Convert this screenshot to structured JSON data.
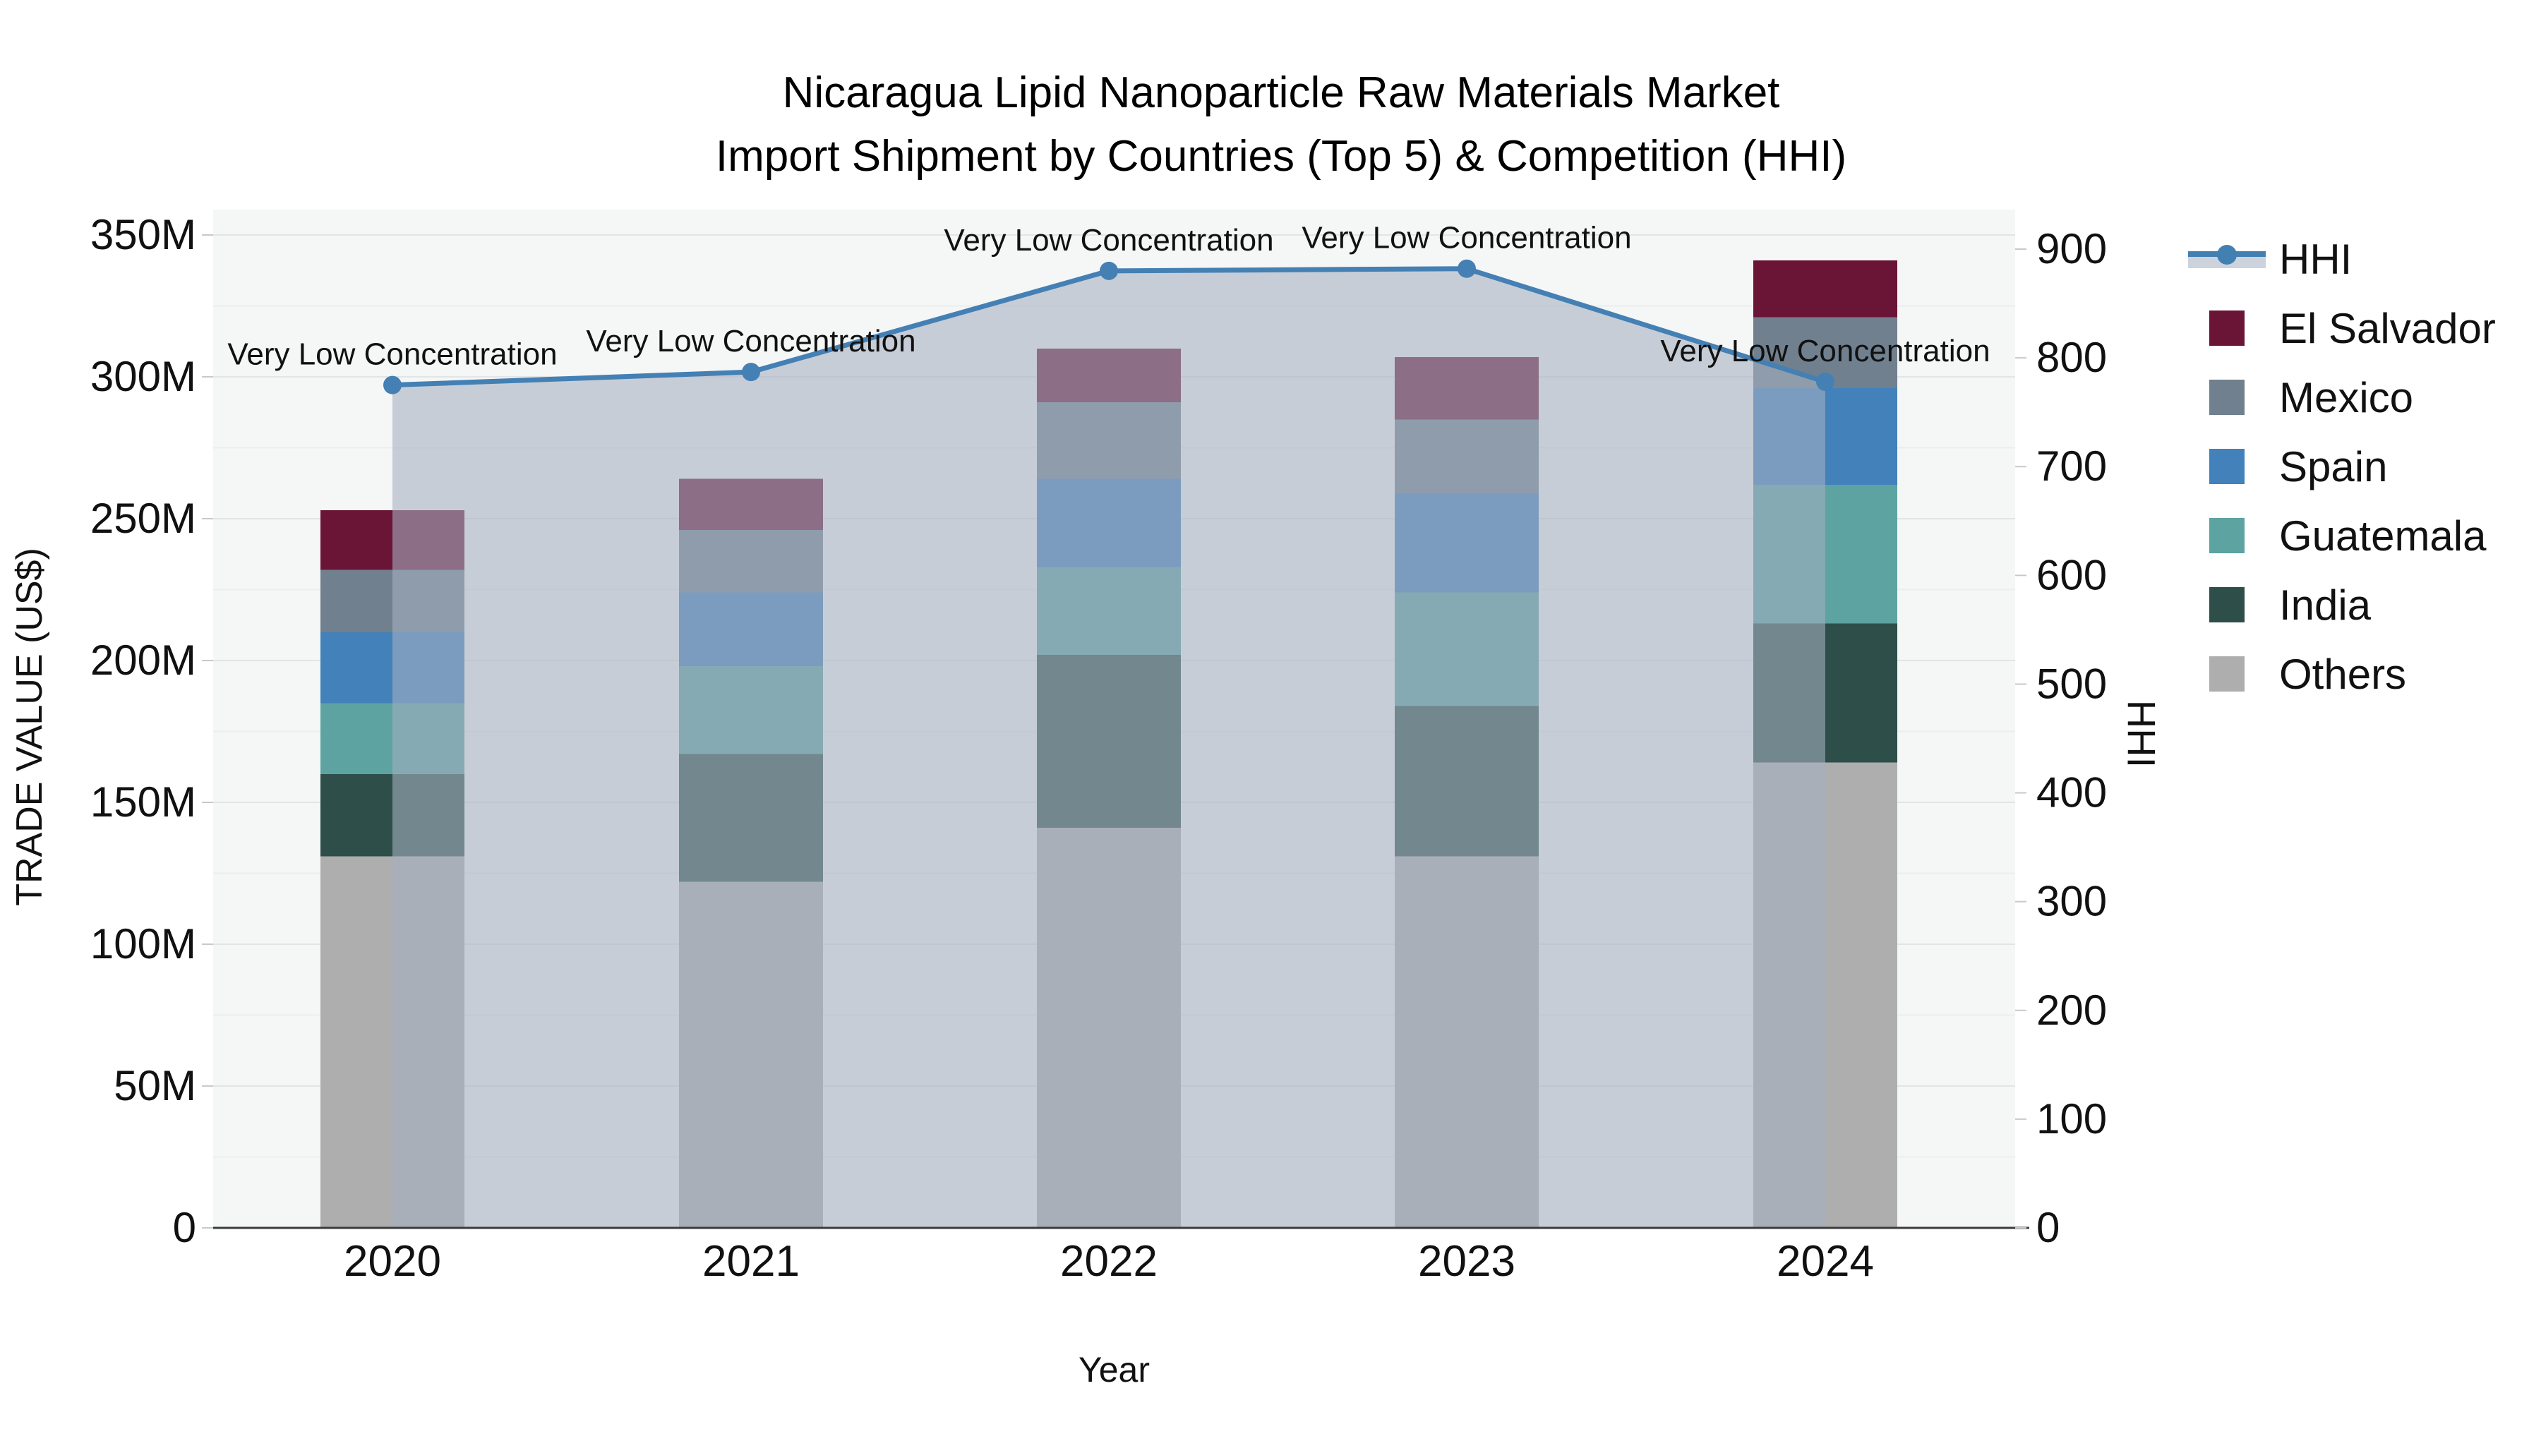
{
  "title": {
    "line1": "Nicaragua Lipid Nanoparticle Raw Materials Market",
    "line2": "Import Shipment by Countries (Top 5) & Competition (HHI)"
  },
  "axes": {
    "left": {
      "title": "TRADE VALUE (US$)",
      "tick_labels": [
        "0",
        "50M",
        "100M",
        "150M",
        "200M",
        "250M",
        "300M",
        "350M"
      ],
      "range_musd": [
        0,
        350
      ]
    },
    "right": {
      "title": "HHI",
      "tick_labels": [
        "0",
        "100",
        "200",
        "300",
        "400",
        "500",
        "600",
        "700",
        "800",
        "900"
      ],
      "range": [
        0,
        900
      ]
    },
    "x": {
      "title": "Year",
      "tick_labels": [
        "2020",
        "2021",
        "2022",
        "2023",
        "2024"
      ]
    }
  },
  "legend": {
    "items": [
      {
        "label": "HHI",
        "type": "line",
        "color": "#4280b2",
        "band_color": "#ccd3dc"
      },
      {
        "label": "El Salvador",
        "type": "swatch",
        "color": "#6a1536"
      },
      {
        "label": "Mexico",
        "type": "swatch",
        "color": "#71808f"
      },
      {
        "label": "Spain",
        "type": "swatch",
        "color": "#4281ba"
      },
      {
        "label": "Guatemala",
        "type": "swatch",
        "color": "#5ca3a1"
      },
      {
        "label": "India",
        "type": "swatch",
        "color": "#2e4f49"
      },
      {
        "label": "Others",
        "type": "swatch",
        "color": "#aeaeae"
      }
    ]
  },
  "annotations": {
    "labels": [
      "Very Low Concentration",
      "Very Low Concentration",
      "Very Low Concentration",
      "Very Low Concentration",
      "Very Low Concentration"
    ]
  },
  "palette": {
    "plot_bg": "#f5f6f6",
    "grid_major": "#e2e4e6",
    "grid_minor": "#ededee",
    "axis_line": "#3b3b3b",
    "tick_mark": "#c9c9c9",
    "hhi_line": "#4480b4",
    "hhi_area_fill": "rgba(165,176,193,0.58)",
    "text": "#111111"
  },
  "chart_data": {
    "type": "bar",
    "subtype": "stacked-bars-with-hhi-line-and-area",
    "title": "Nicaragua Lipid Nanoparticle Raw Materials Market — Import Shipment by Countries (Top 5) & Competition (HHI)",
    "categories": [
      "2020",
      "2021",
      "2022",
      "2023",
      "2024"
    ],
    "unit": "million US$",
    "xlabel": "Year",
    "ylabel_left": "TRADE VALUE (US$)",
    "ylabel_right": "HHI",
    "ylim_left_musd": [
      0,
      350
    ],
    "ylim_right_hhi": [
      0,
      900
    ],
    "grid": "horizontal major every 50M, minor every 25M",
    "legend_position": "right",
    "stack_order_bottom_to_top": [
      "Others",
      "India",
      "Guatemala",
      "Spain",
      "Mexico",
      "El Salvador"
    ],
    "series": [
      {
        "name": "El Salvador",
        "values_musd": [
          21,
          18,
          19,
          22,
          20
        ]
      },
      {
        "name": "Mexico",
        "values_musd": [
          22,
          22,
          27,
          26,
          25
        ]
      },
      {
        "name": "Spain",
        "values_musd": [
          25,
          26,
          31,
          35,
          34
        ]
      },
      {
        "name": "Guatemala",
        "values_musd": [
          25,
          31,
          31,
          40,
          49
        ]
      },
      {
        "name": "India",
        "values_musd": [
          29,
          45,
          61,
          53,
          49
        ]
      },
      {
        "name": "Others",
        "values_musd": [
          131,
          122,
          141,
          131,
          164
        ]
      }
    ],
    "bar_totals_musd": [
      253,
      264,
      310,
      307,
      341
    ],
    "line_series": {
      "name": "HHI",
      "axis": "right",
      "values": [
        775,
        787,
        880,
        882,
        778
      ],
      "area_fill_to_zero": true,
      "point_annotations": [
        "Very Low Concentration",
        "Very Low Concentration",
        "Very Low Concentration",
        "Very Low Concentration",
        "Very Low Concentration"
      ]
    }
  }
}
